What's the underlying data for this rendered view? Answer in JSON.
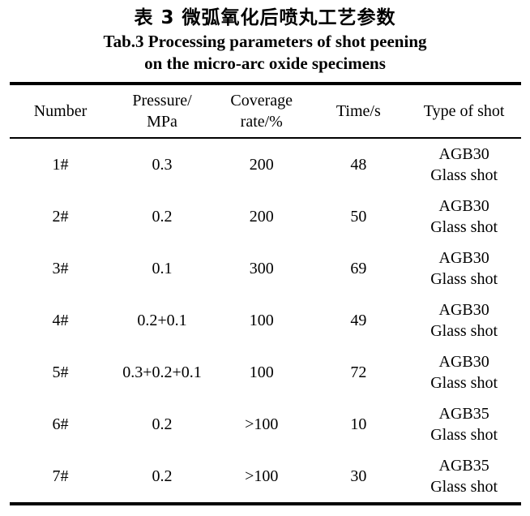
{
  "page": {
    "caption_zh": "表 3 微弧氧化后喷丸工艺参数",
    "caption_en_line1": "Tab.3 Processing parameters of shot peening",
    "caption_en_line2": "on the micro-arc oxide specimens"
  },
  "colors": {
    "text": "#000000",
    "background": "#ffffff",
    "rule": "#000000"
  },
  "table": {
    "columns": [
      {
        "key": "number",
        "label": "Number"
      },
      {
        "key": "pressure",
        "label": "Pressure/\nMPa"
      },
      {
        "key": "coverage",
        "label": "Coverage\nrate/%"
      },
      {
        "key": "time",
        "label": "Time/s"
      },
      {
        "key": "shot",
        "label": "Type of shot"
      }
    ],
    "rows": [
      {
        "cells": [
          "1#",
          "0.3",
          "200",
          "48",
          "AGB30\nGlass shot"
        ]
      },
      {
        "cells": [
          "2#",
          "0.2",
          "200",
          "50",
          "AGB30\nGlass shot"
        ]
      },
      {
        "cells": [
          "3#",
          "0.1",
          "300",
          "69",
          "AGB30\nGlass shot"
        ]
      },
      {
        "cells": [
          "4#",
          "0.2+0.1",
          "100",
          "49",
          "AGB30\nGlass shot"
        ]
      },
      {
        "cells": [
          "5#",
          "0.3+0.2+0.1",
          "100",
          "72",
          "AGB30\nGlass shot"
        ]
      },
      {
        "cells": [
          "6#",
          "0.2",
          ">100",
          "10",
          "AGB35\nGlass shot"
        ]
      },
      {
        "cells": [
          "7#",
          "0.2",
          ">100",
          "30",
          "AGB35\nGlass shot"
        ]
      }
    ]
  },
  "chart_data": {
    "type": "table",
    "title": "Tab.3 Processing parameters of shot peening on the micro-arc oxide specimens",
    "title_zh": "表 3 微弧氧化后喷丸工艺参数",
    "columns": [
      "Number",
      "Pressure/MPa",
      "Coverage rate/%",
      "Time/s",
      "Type of shot"
    ],
    "rows": [
      [
        "1#",
        "0.3",
        "200",
        "48",
        "AGB30 Glass shot"
      ],
      [
        "2#",
        "0.2",
        "200",
        "50",
        "AGB30 Glass shot"
      ],
      [
        "3#",
        "0.1",
        "300",
        "69",
        "AGB30 Glass shot"
      ],
      [
        "4#",
        "0.2+0.1",
        "100",
        "49",
        "AGB30 Glass shot"
      ],
      [
        "5#",
        "0.3+0.2+0.1",
        "100",
        "72",
        "AGB30 Glass shot"
      ],
      [
        "6#",
        "0.2",
        ">100",
        "10",
        "AGB35 Glass shot"
      ],
      [
        "7#",
        "0.2",
        ">100",
        "30",
        "AGB35 Glass shot"
      ]
    ]
  }
}
